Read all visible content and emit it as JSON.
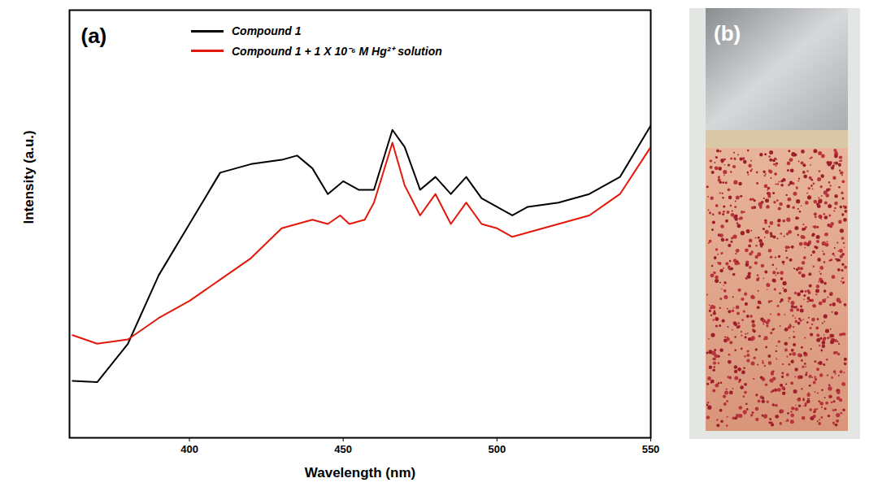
{
  "chart_data": {
    "type": "line",
    "annotations": [
      "(a)"
    ],
    "x_label": "Wavelength (nm)",
    "y_label": "Intensity (a.u.)",
    "xlim": [
      361,
      550
    ],
    "xticks": [
      400,
      450,
      500,
      550
    ],
    "ylim": [
      0,
      100
    ],
    "yticks": [],
    "tick_labels": "x",
    "grid": false,
    "legend": "upper center",
    "series": [
      {
        "name": "Compound 1",
        "color": "#000000",
        "x": [
          362,
          370,
          380,
          390,
          400,
          405,
          410,
          420,
          430,
          435,
          440,
          445,
          450,
          455,
          460,
          466,
          470,
          475,
          480,
          485,
          490,
          495,
          500,
          505,
          510,
          520,
          530,
          540,
          550
        ],
        "values": [
          13.3,
          13,
          22,
          38,
          50,
          56,
          62,
          64,
          65,
          66,
          63,
          57,
          60,
          58,
          58,
          72,
          68,
          58,
          61,
          57,
          61,
          56,
          54,
          52,
          54,
          55,
          57,
          61,
          73
        ]
      },
      {
        "name": "Compound 1 + 1 X 10⁻⁶ M Hg²⁺ solution",
        "color": "#e3170a",
        "x": [
          362,
          370,
          380,
          390,
          400,
          410,
          420,
          430,
          440,
          445,
          449,
          452,
          457,
          460,
          466,
          470,
          475,
          480,
          485,
          490,
          495,
          500,
          505,
          510,
          520,
          530,
          540,
          550
        ],
        "values": [
          24,
          22,
          23,
          28,
          32,
          37,
          42,
          49,
          51,
          50,
          52,
          50,
          51,
          55,
          69,
          59,
          52,
          57,
          50,
          55,
          50,
          49,
          47,
          48,
          50,
          52,
          57,
          68
        ]
      }
    ]
  },
  "photo": {
    "label": "(b)"
  }
}
